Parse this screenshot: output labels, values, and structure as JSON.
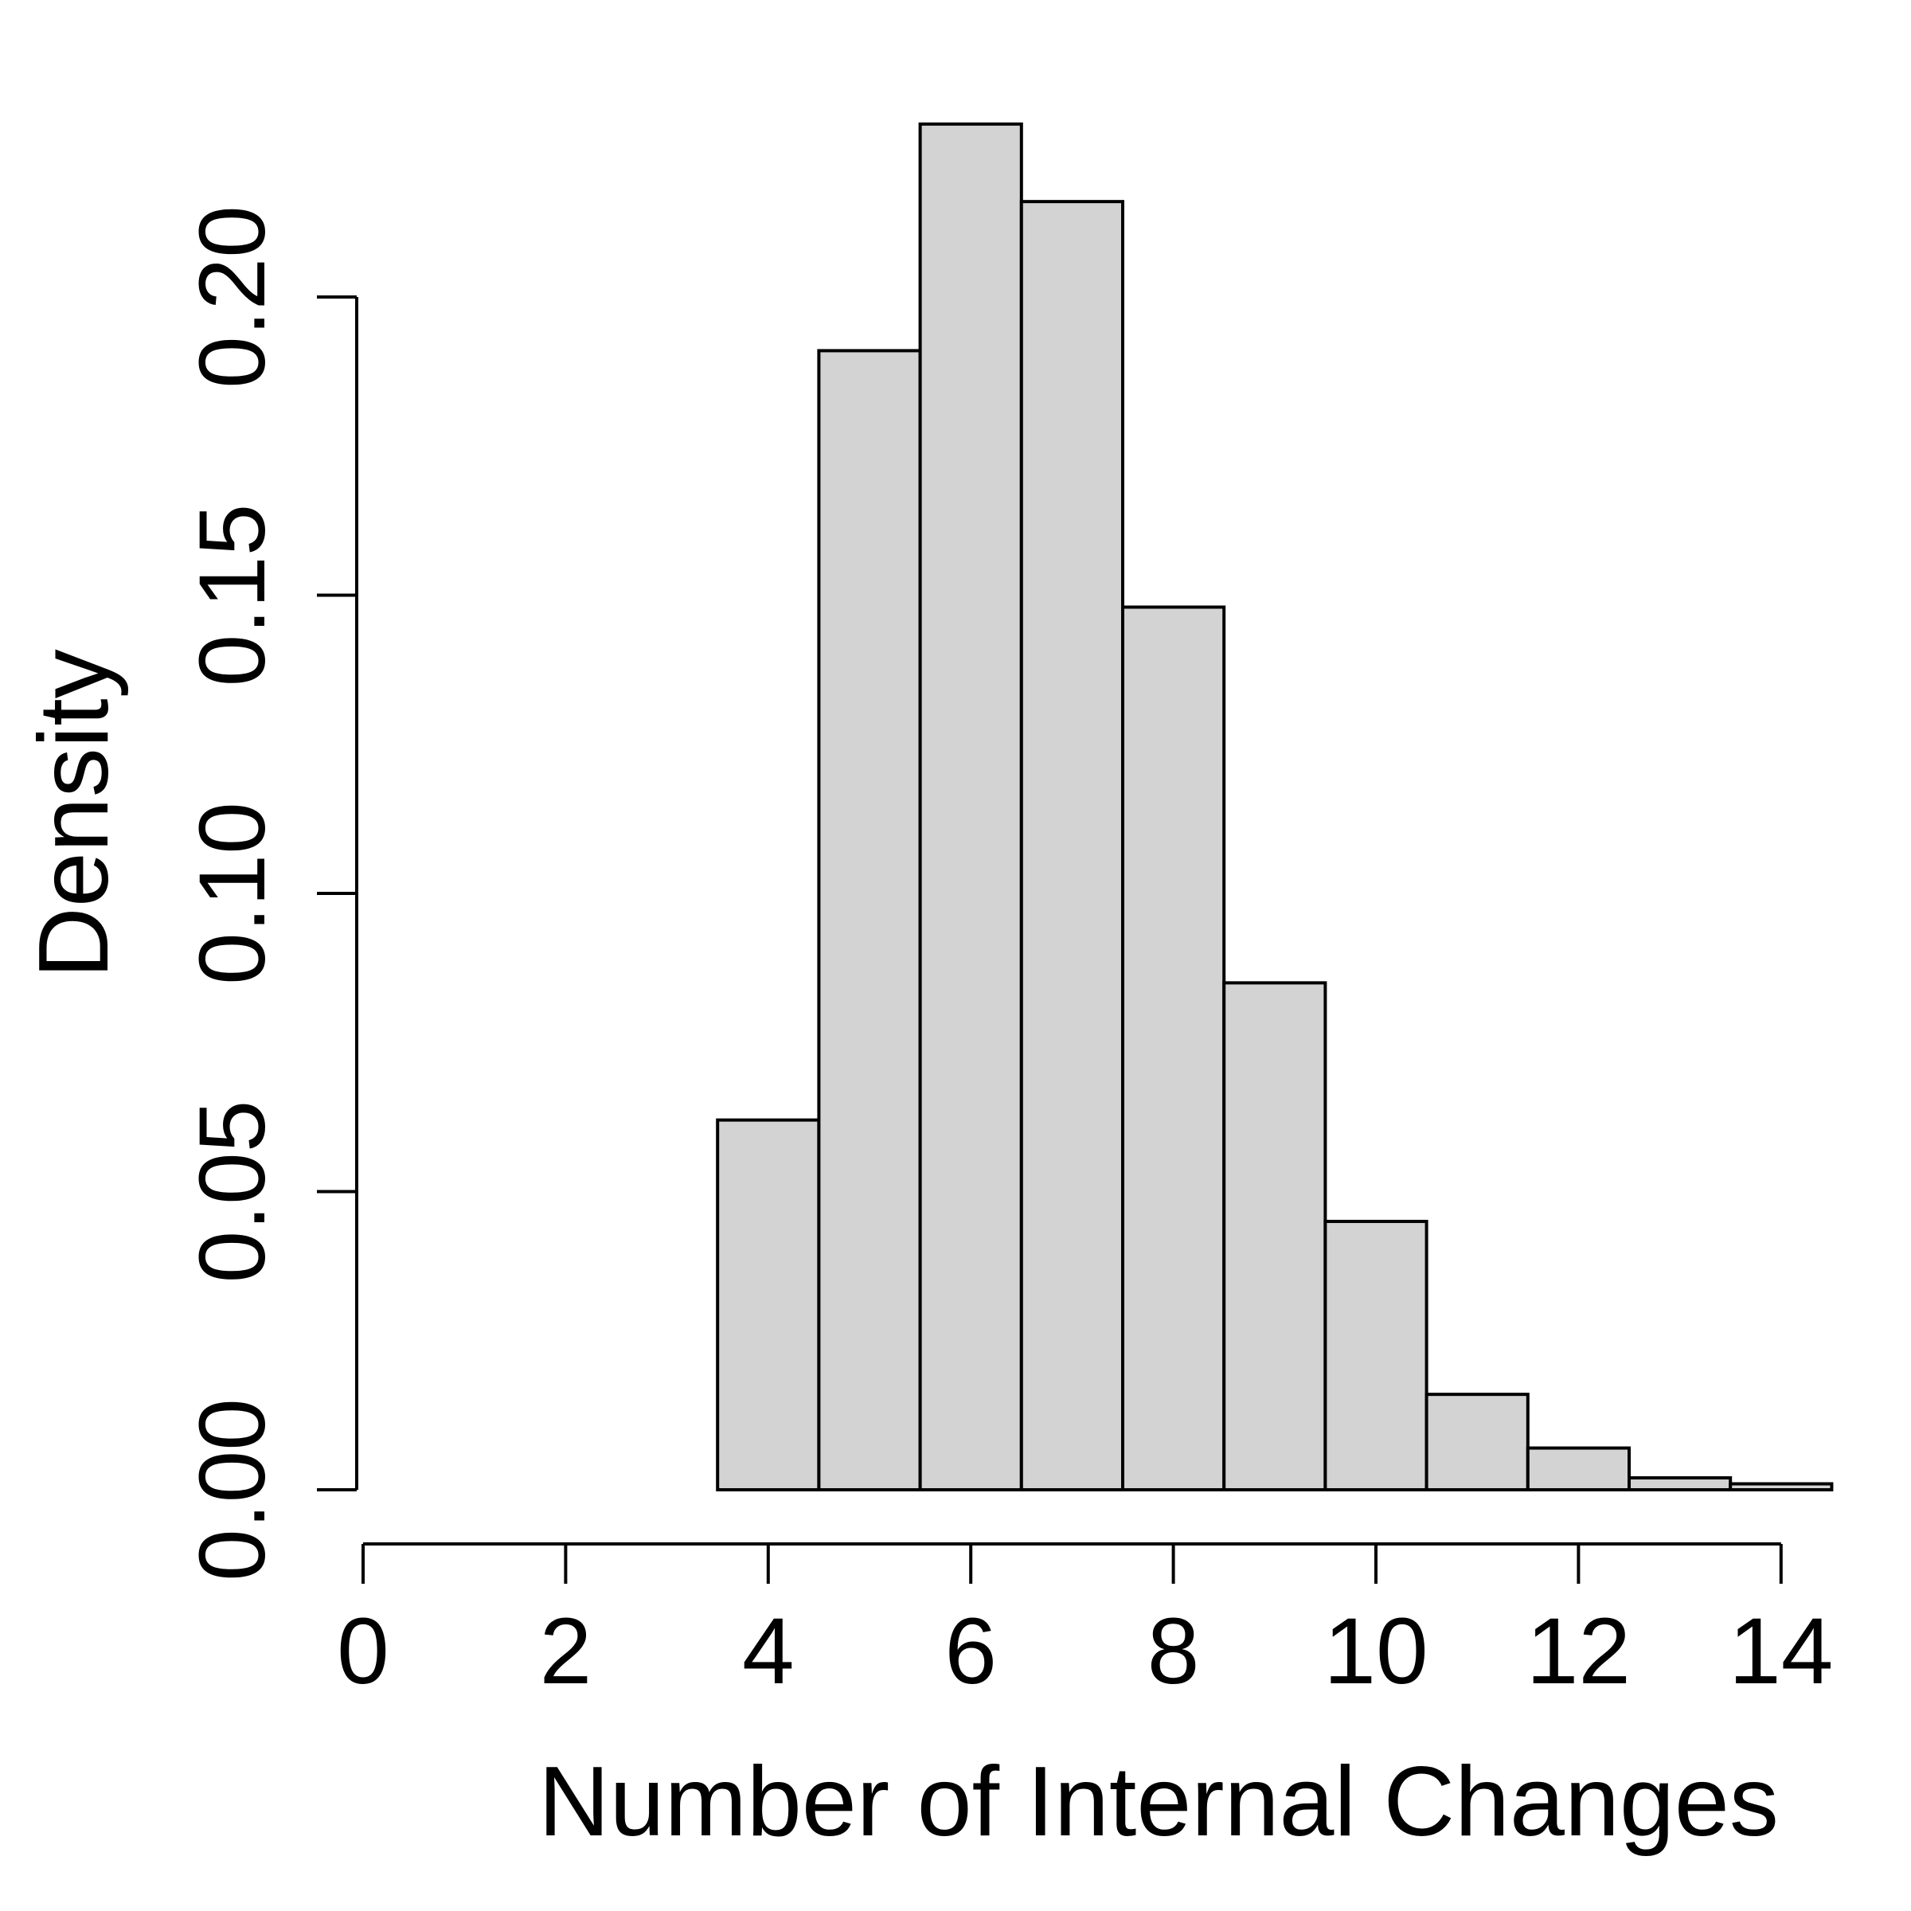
{
  "chart_data": {
    "type": "bar",
    "subtype": "histogram",
    "xlabel": "Number of Internal Changes",
    "ylabel": "Density",
    "xlim": [
      0,
      14
    ],
    "ylim": [
      0,
      0.2
    ],
    "x_ticks": [
      "0",
      "2",
      "4",
      "6",
      "8",
      "10",
      "12",
      "14"
    ],
    "y_ticks": [
      "0.00",
      "0.05",
      "0.10",
      "0.15",
      "0.20"
    ],
    "bar_fill": "#d3d3d3",
    "bar_stroke": "#000000",
    "grid": false,
    "legend": false,
    "bins": [
      {
        "from": 0.5,
        "to": 3.5,
        "density": 0.0
      },
      {
        "from": 3.5,
        "to": 4.5,
        "density": 0.062
      },
      {
        "from": 4.5,
        "to": 5.5,
        "density": 0.191
      },
      {
        "from": 5.5,
        "to": 6.5,
        "density": 0.229
      },
      {
        "from": 6.5,
        "to": 7.5,
        "density": 0.216
      },
      {
        "from": 7.5,
        "to": 8.5,
        "density": 0.148
      },
      {
        "from": 8.5,
        "to": 9.5,
        "density": 0.085
      },
      {
        "from": 9.5,
        "to": 10.5,
        "density": 0.045
      },
      {
        "from": 10.5,
        "to": 11.5,
        "density": 0.016
      },
      {
        "from": 11.5,
        "to": 12.5,
        "density": 0.007
      },
      {
        "from": 12.5,
        "to": 13.5,
        "density": 0.002
      },
      {
        "from": 13.5,
        "to": 14.5,
        "density": 0.001
      }
    ]
  }
}
